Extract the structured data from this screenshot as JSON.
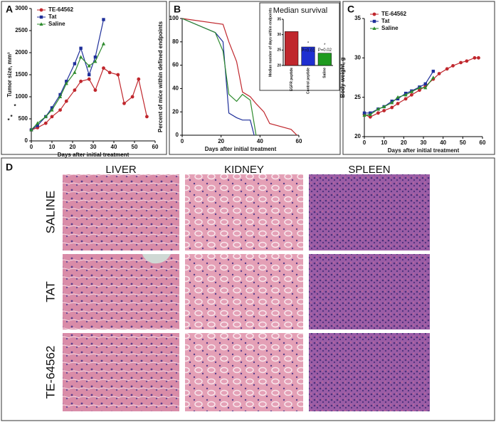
{
  "chart_data": [
    {
      "type": "line",
      "panel": "A",
      "ylabel": "Tumor size, mm³",
      "xlabel": "Days after initial treatment",
      "xlim": [
        0,
        60
      ],
      "xticks": [
        0,
        10,
        20,
        30,
        40,
        50,
        60
      ],
      "ylim": [
        0,
        3000
      ],
      "yticks": [
        0,
        500,
        1000,
        1500,
        2000,
        2500,
        3000
      ],
      "legend": "upper left",
      "annotations": [
        "*",
        "*",
        "*"
      ],
      "series": [
        {
          "name": "TE-64562",
          "color": "#c0272d",
          "marker": "circle",
          "x": [
            0,
            3,
            7,
            10,
            14,
            17,
            21,
            24,
            28,
            31,
            35,
            38,
            42,
            45,
            49,
            52,
            56
          ],
          "values": [
            250,
            300,
            400,
            550,
            700,
            900,
            1150,
            1350,
            1400,
            1150,
            1650,
            1550,
            1500,
            850,
            1000,
            1400,
            550
          ]
        },
        {
          "name": "Tat",
          "color": "#1f2f9a",
          "marker": "square",
          "x": [
            0,
            3,
            7,
            10,
            14,
            17,
            21,
            24,
            28,
            31,
            35
          ],
          "values": [
            250,
            350,
            550,
            750,
            1050,
            1350,
            1750,
            2100,
            1500,
            1900,
            2750
          ]
        },
        {
          "name": "Saline",
          "color": "#2e8b2e",
          "marker": "triangle",
          "x": [
            0,
            3,
            7,
            10,
            14,
            17,
            21,
            24,
            28,
            31,
            35
          ],
          "values": [
            250,
            400,
            550,
            700,
            1000,
            1300,
            1550,
            1900,
            1700,
            1800,
            2200
          ]
        }
      ]
    },
    {
      "type": "line",
      "panel": "B",
      "ylabel": "Percent of mice within defined endpoints",
      "xlabel": "Days after initial treatment",
      "xlim": [
        0,
        60
      ],
      "xticks": [
        0,
        20,
        40,
        60
      ],
      "ylim": [
        0,
        100
      ],
      "yticks": [
        0,
        20,
        40,
        60,
        80,
        100
      ],
      "series": [
        {
          "name": "TE-64562",
          "color": "#c0272d",
          "x": [
            0,
            21,
            24,
            28,
            31,
            35,
            38,
            42,
            45,
            56,
            59
          ],
          "values": [
            100,
            95,
            80,
            63,
            37,
            33,
            27,
            20,
            10,
            5,
            0
          ]
        },
        {
          "name": "Tat",
          "color": "#1f2f9a",
          "x": [
            0,
            17,
            21,
            24,
            28,
            31,
            35,
            37
          ],
          "values": [
            100,
            88,
            80,
            19,
            15,
            13,
            13,
            0
          ]
        },
        {
          "name": "Saline",
          "color": "#2e8b2e",
          "x": [
            0,
            17,
            21,
            24,
            28,
            31,
            35,
            38
          ],
          "values": [
            100,
            88,
            72,
            35,
            29,
            35,
            30,
            0
          ]
        }
      ]
    },
    {
      "type": "bar",
      "title": "Median survival",
      "ylabel": "Median number of days within endpoints",
      "categories": [
        "EGFR peptide",
        "Control peptide",
        "Saline"
      ],
      "values": [
        31,
        26,
        24
      ],
      "colors": [
        "#c0272d",
        "#1f2fd0",
        "#1f9a1f"
      ],
      "ylim": [
        20,
        35
      ],
      "yticks": [
        20,
        25,
        30,
        35
      ],
      "annotations": [
        "*",
        "P=0.01",
        "*",
        "P=0.02"
      ]
    },
    {
      "type": "line",
      "panel": "C",
      "ylabel": "Body weight, g",
      "xlabel": "Days after initial treatment",
      "xlim": [
        0,
        60
      ],
      "xticks": [
        0,
        10,
        20,
        30,
        40,
        50,
        60
      ],
      "ylim": [
        20,
        35
      ],
      "yticks": [
        20,
        25,
        30,
        35
      ],
      "legend": "upper left",
      "series": [
        {
          "name": "TE-64562",
          "color": "#c0272d",
          "marker": "circle",
          "x": [
            0,
            3,
            7,
            10,
            14,
            17,
            21,
            24,
            28,
            31,
            35,
            38,
            42,
            45,
            49,
            52,
            56,
            58
          ],
          "values": [
            22.8,
            22.5,
            23,
            23.3,
            23.7,
            24.2,
            24.8,
            25.3,
            25.9,
            26.4,
            27.3,
            28,
            28.6,
            29,
            29.4,
            29.6,
            30,
            30
          ]
        },
        {
          "name": "Tat",
          "color": "#1f2f9a",
          "marker": "square",
          "x": [
            0,
            3,
            7,
            10,
            14,
            17,
            21,
            24,
            28,
            31,
            35
          ],
          "values": [
            23,
            23,
            23.5,
            23.8,
            24.5,
            24.8,
            25.5,
            25.8,
            26.3,
            26.7,
            28.3
          ]
        },
        {
          "name": "Saline",
          "color": "#2e8b2e",
          "marker": "triangle",
          "x": [
            0,
            3,
            7,
            10,
            14,
            17,
            21,
            24,
            28,
            31,
            35
          ],
          "values": [
            22.7,
            22.8,
            23.5,
            23.8,
            24.3,
            25,
            25.3,
            25.7,
            26.2,
            26.2,
            27.5
          ]
        }
      ]
    }
  ],
  "figure_d": {
    "panel": "D",
    "columns": [
      "LIVER",
      "KIDNEY",
      "SPLEEN"
    ],
    "rows": [
      "SALINE",
      "TAT",
      "TE-64562"
    ]
  }
}
